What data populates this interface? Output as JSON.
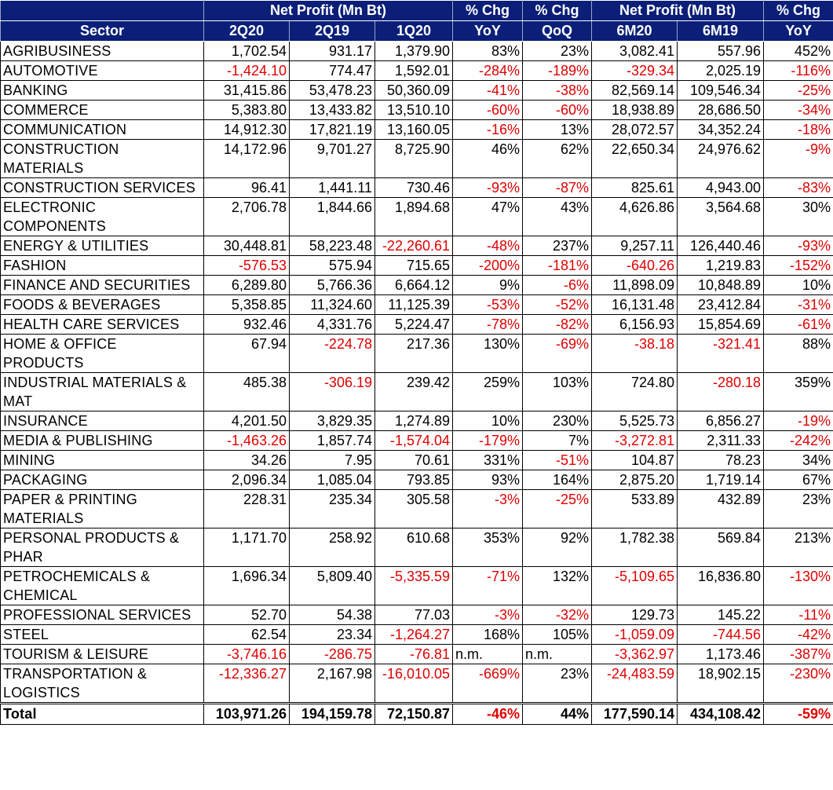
{
  "table": {
    "header_top": [
      null,
      "Net Profit (Mn Bt)",
      "% Chg",
      "% Chg",
      "Net Profit (Mn Bt)",
      "% Chg"
    ],
    "header": [
      "Sector",
      "2Q20",
      "2Q19",
      "1Q20",
      "YoY",
      "QoQ",
      "6M20",
      "6M19",
      "YoY"
    ],
    "rows": [
      [
        "AGRIBUSINESS",
        "1,702.54",
        "931.17",
        "1,379.90",
        "83%",
        "23%",
        "3,082.41",
        "557.96",
        "452%"
      ],
      [
        "AUTOMOTIVE",
        "-1,424.10",
        "774.47",
        "1,592.01",
        "-284%",
        "-189%",
        "-329.34",
        "2,025.19",
        "-116%"
      ],
      [
        "BANKING",
        "31,415.86",
        "53,478.23",
        "50,360.09",
        "-41%",
        "-38%",
        "82,569.14",
        "109,546.34",
        "-25%"
      ],
      [
        "COMMERCE",
        "5,383.80",
        "13,433.82",
        "13,510.10",
        "-60%",
        "-60%",
        "18,938.89",
        "28,686.50",
        "-34%"
      ],
      [
        "COMMUNICATION",
        "14,912.30",
        "17,821.19",
        "13,160.05",
        "-16%",
        "13%",
        "28,072.57",
        "34,352.24",
        "-18%"
      ],
      [
        "CONSTRUCTION MATERIALS",
        "14,172.96",
        "9,701.27",
        "8,725.90",
        "46%",
        "62%",
        "22,650.34",
        "24,976.62",
        "-9%"
      ],
      [
        "CONSTRUCTION SERVICES",
        "96.41",
        "1,441.11",
        "730.46",
        "-93%",
        "-87%",
        "825.61",
        "4,943.00",
        "-83%"
      ],
      [
        "ELECTRONIC COMPONENTS",
        "2,706.78",
        "1,844.66",
        "1,894.68",
        "47%",
        "43%",
        "4,626.86",
        "3,564.68",
        "30%"
      ],
      [
        "ENERGY & UTILITIES",
        "30,448.81",
        "58,223.48",
        "-22,260.61",
        "-48%",
        "237%",
        "9,257.11",
        "126,440.46",
        "-93%"
      ],
      [
        "FASHION",
        "-576.53",
        "575.94",
        "715.65",
        "-200%",
        "-181%",
        "-640.26",
        "1,219.83",
        "-152%"
      ],
      [
        "FINANCE AND SECURITIES",
        "6,289.80",
        "5,766.36",
        "6,664.12",
        "9%",
        "-6%",
        "11,898.09",
        "10,848.89",
        "10%"
      ],
      [
        "FOODS & BEVERAGES",
        "5,358.85",
        "11,324.60",
        "11,125.39",
        "-53%",
        "-52%",
        "16,131.48",
        "23,412.84",
        "-31%"
      ],
      [
        "HEALTH CARE SERVICES",
        "932.46",
        "4,331.76",
        "5,224.47",
        "-78%",
        "-82%",
        "6,156.93",
        "15,854.69",
        "-61%"
      ],
      [
        "HOME & OFFICE PRODUCTS",
        "67.94",
        "-224.78",
        "217.36",
        "130%",
        "-69%",
        "-38.18",
        "-321.41",
        "88%"
      ],
      [
        "INDUSTRIAL MATERIALS & MAT",
        "485.38",
        "-306.19",
        "239.42",
        "259%",
        "103%",
        "724.80",
        "-280.18",
        "359%"
      ],
      [
        "INSURANCE",
        "4,201.50",
        "3,829.35",
        "1,274.89",
        "10%",
        "230%",
        "5,525.73",
        "6,856.27",
        "-19%"
      ],
      [
        "MEDIA & PUBLISHING",
        "-1,463.26",
        "1,857.74",
        "-1,574.04",
        "-179%",
        "7%",
        "-3,272.81",
        "2,311.33",
        "-242%"
      ],
      [
        "MINING",
        "34.26",
        "7.95",
        "70.61",
        "331%",
        "-51%",
        "104.87",
        "78.23",
        "34%"
      ],
      [
        "PACKAGING",
        "2,096.34",
        "1,085.04",
        "793.85",
        "93%",
        "164%",
        "2,875.20",
        "1,719.14",
        "67%"
      ],
      [
        "PAPER & PRINTING MATERIALS",
        "228.31",
        "235.34",
        "305.58",
        "-3%",
        "-25%",
        "533.89",
        "432.89",
        "23%"
      ],
      [
        "PERSONAL PRODUCTS & PHAR",
        "1,171.70",
        "258.92",
        "610.68",
        "353%",
        "92%",
        "1,782.38",
        "569.84",
        "213%"
      ],
      [
        "PETROCHEMICALS & CHEMICAL",
        "1,696.34",
        "5,809.40",
        "-5,335.59",
        "-71%",
        "132%",
        "-5,109.65",
        "16,836.80",
        "-130%"
      ],
      [
        "PROFESSIONAL SERVICES",
        "52.70",
        "54.38",
        "77.03",
        "-3%",
        "-32%",
        "129.73",
        "145.22",
        "-11%"
      ],
      [
        "STEEL",
        "62.54",
        "23.34",
        "-1,264.27",
        "168%",
        "105%",
        "-1,059.09",
        "-744.56",
        "-42%"
      ],
      [
        "TOURISM & LEISURE",
        "-3,746.16",
        "-286.75",
        "-76.81",
        "n.m.",
        "n.m.",
        "-3,362.97",
        "1,173.46",
        "-387%"
      ],
      [
        "TRANSPORTATION & LOGISTICS",
        "-12,336.27",
        "2,167.98",
        "-16,010.05",
        "-669%",
        "23%",
        "-24,483.59",
        "18,902.15",
        "-230%"
      ]
    ],
    "total": [
      "Total",
      "103,971.26",
      "194,159.78",
      "72,150.87",
      "-46%",
      "44%",
      "177,590.14",
      "434,108.42",
      "-59%"
    ]
  }
}
